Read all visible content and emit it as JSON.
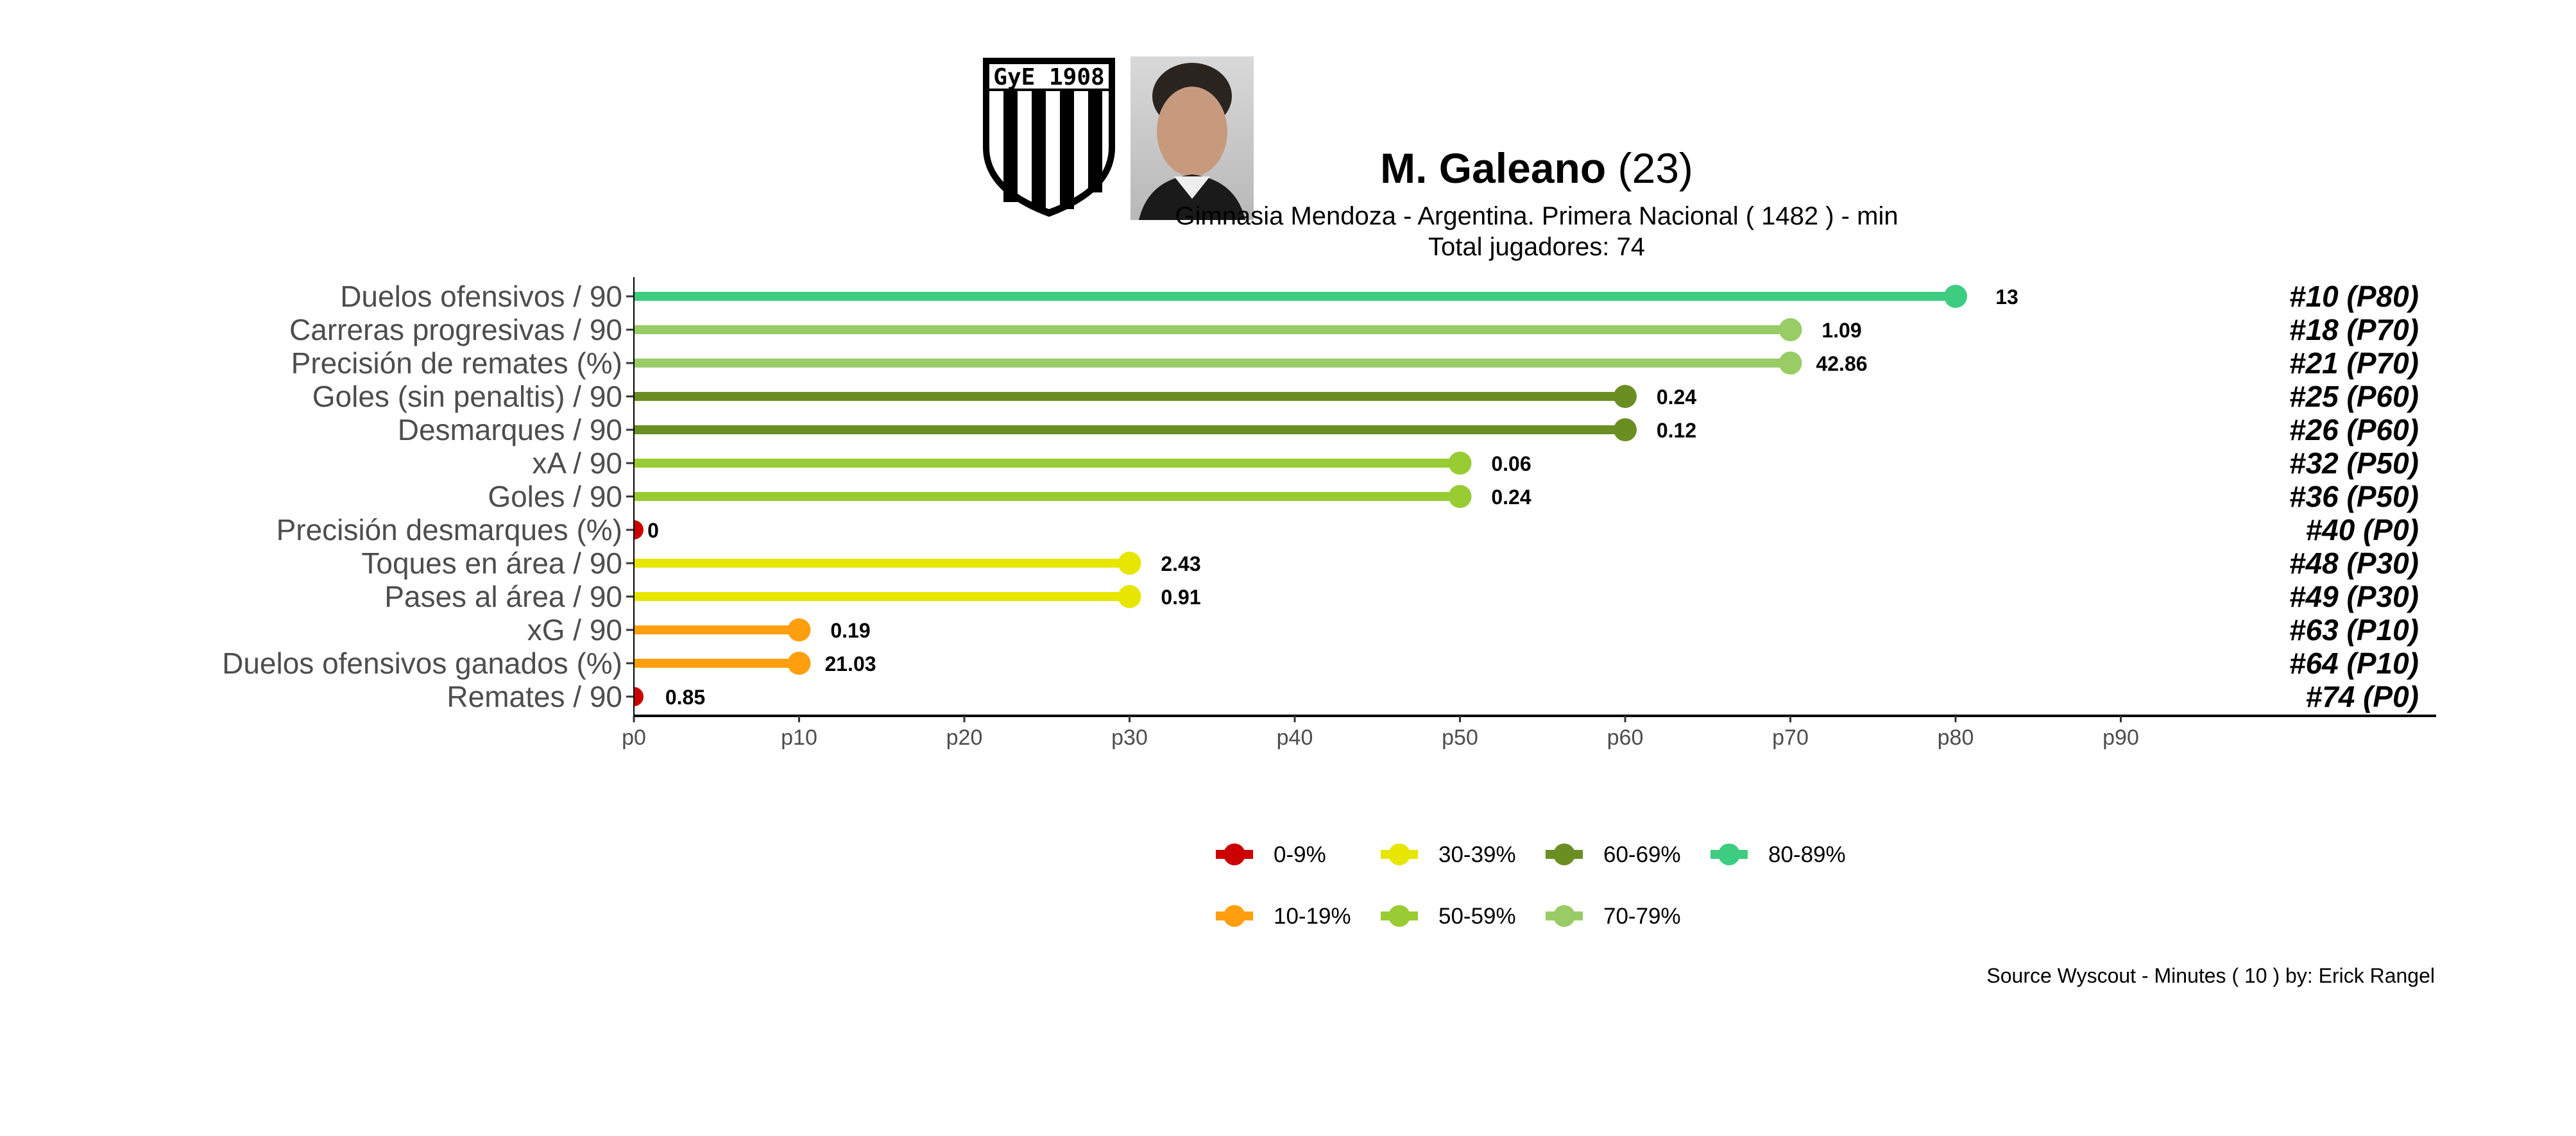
{
  "chart_data": {
    "type": "lollipop",
    "title": {
      "name": "M. Galeano",
      "age": "(23)"
    },
    "subtitle": {
      "line1": "Gimnasia Mendoza  -  Argentina. Primera Nacional  ( 1482 ) - min",
      "line2": "Total jugadores:  74"
    },
    "logo_text": "GyE 1908",
    "caption": "Source Wyscout - Minutes ( 10 ) by: Erick Rangel",
    "x_ticks": [
      "p0",
      "p10",
      "p20",
      "p30",
      "p40",
      "p50",
      "p60",
      "p70",
      "p80",
      "p90"
    ],
    "xlim": [
      0,
      109
    ],
    "categories": [
      "Duelos ofensivos / 90",
      "Carreras progresivas / 90",
      "Precisión de remates (%)",
      "Goles (sin penaltis) / 90",
      "Desmarques / 90",
      "xA / 90",
      "Goles / 90",
      "Precisión desmarques (%)",
      "Toques en área / 90",
      "Pases al área / 90",
      "xG / 90",
      "Duelos ofensivos ganados (%)",
      "Remates / 90"
    ],
    "percentiles": [
      80,
      70,
      70,
      60,
      60,
      50,
      50,
      0,
      30,
      30,
      10,
      10,
      0
    ],
    "values": [
      "13",
      "1.09",
      "42.86",
      "0.24",
      "0.12",
      "0.06",
      "0.24",
      "0",
      "2.43",
      "0.91",
      "0.19",
      "21.03",
      "0.85"
    ],
    "ranks": [
      "#10 (P80)",
      "#18 (P70)",
      "#21 (P70)",
      "#25 (P60)",
      "#26 (P60)",
      "#32 (P50)",
      "#36 (P50)",
      "#40 (P0)",
      "#48 (P30)",
      "#49 (P30)",
      "#63 (P10)",
      "#64 (P10)",
      "#74 (P0)"
    ],
    "groups": [
      "80-89%",
      "70-79%",
      "70-79%",
      "60-69%",
      "60-69%",
      "50-59%",
      "50-59%",
      "0-9%",
      "30-39%",
      "30-39%",
      "10-19%",
      "10-19%",
      "0-9%"
    ],
    "legend": [
      {
        "label": "0-9%",
        "color": "#cc0000"
      },
      {
        "label": "10-19%",
        "color": "#ff9f0f"
      },
      {
        "label": "30-39%",
        "color": "#e6e600"
      },
      {
        "label": "50-59%",
        "color": "#99cc33"
      },
      {
        "label": "60-69%",
        "color": "#6b8e23"
      },
      {
        "label": "70-79%",
        "color": "#99cc66"
      },
      {
        "label": "80-89%",
        "color": "#3dcc80"
      }
    ],
    "legend_order": [
      "0-9%",
      "30-39%",
      "60-69%",
      "80-89%",
      "10-19%",
      "50-59%",
      "70-79%"
    ],
    "legend_position": "bottom",
    "grid": false
  }
}
